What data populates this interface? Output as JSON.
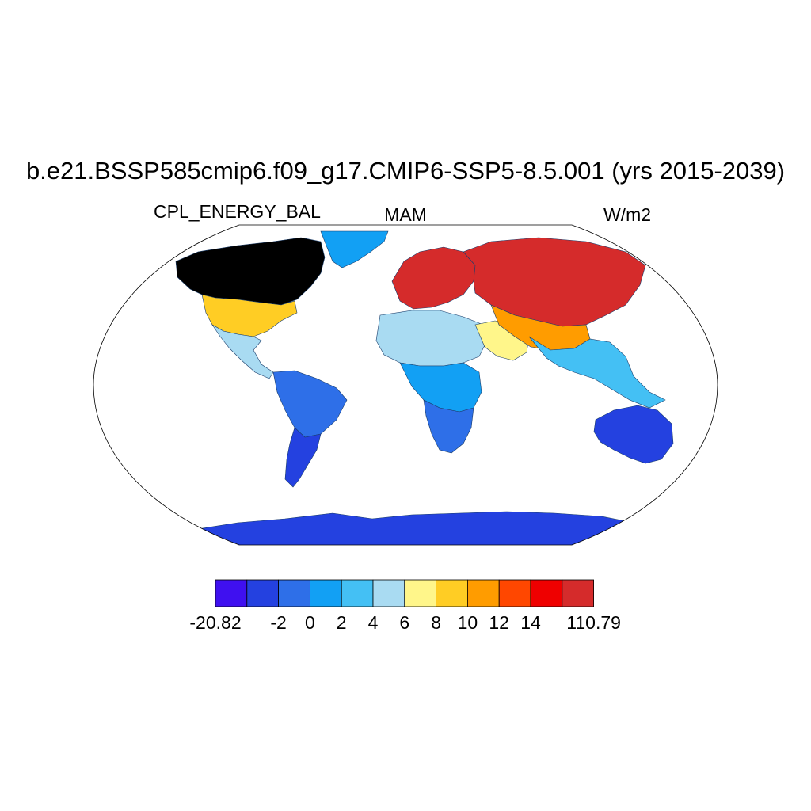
{
  "title": "b.e21.BSSP585cmip6.f09_g17.CMIP6-SSP5-8.5.001 (yrs 2015-2039)",
  "subtitle_left": "CPL_ENERGY_BAL",
  "subtitle_center": "MAM",
  "subtitle_right": "W/m2",
  "projection": "robinson",
  "colorbar": {
    "colors": [
      "#3f10f0",
      "#2441e0",
      "#2e6fe8",
      "#12a0f4",
      "#44c0f4",
      "#a9dbf2",
      "#fff68a",
      "#ffcd24",
      "#ff9c00",
      "#ff4700",
      "#ef0000",
      "#d52b2b"
    ],
    "labels": [
      "-20.82",
      "-2",
      "0",
      "2",
      "4",
      "6",
      "8",
      "10",
      "12",
      "14",
      "110.79"
    ]
  },
  "regions": [
    {
      "name": "Canada",
      "level": 12
    },
    {
      "name": "United States",
      "level": 7
    },
    {
      "name": "Mexico & Central America",
      "level": 5
    },
    {
      "name": "Greenland",
      "level": 3
    },
    {
      "name": "South America north",
      "level": 2
    },
    {
      "name": "South America south",
      "level": 1
    },
    {
      "name": "Europe",
      "level": 11
    },
    {
      "name": "Russia / Siberia",
      "level": 11
    },
    {
      "name": "North Africa / Sahara",
      "level": 5
    },
    {
      "name": "Central Africa",
      "level": 3
    },
    {
      "name": "Southern Africa",
      "level": 2
    },
    {
      "name": "Middle East",
      "level": 6
    },
    {
      "name": "Central Asia",
      "level": 8
    },
    {
      "name": "South & Southeast Asia",
      "level": 4
    },
    {
      "name": "Australia",
      "level": 1
    },
    {
      "name": "Antarctica",
      "level": 1
    }
  ]
}
